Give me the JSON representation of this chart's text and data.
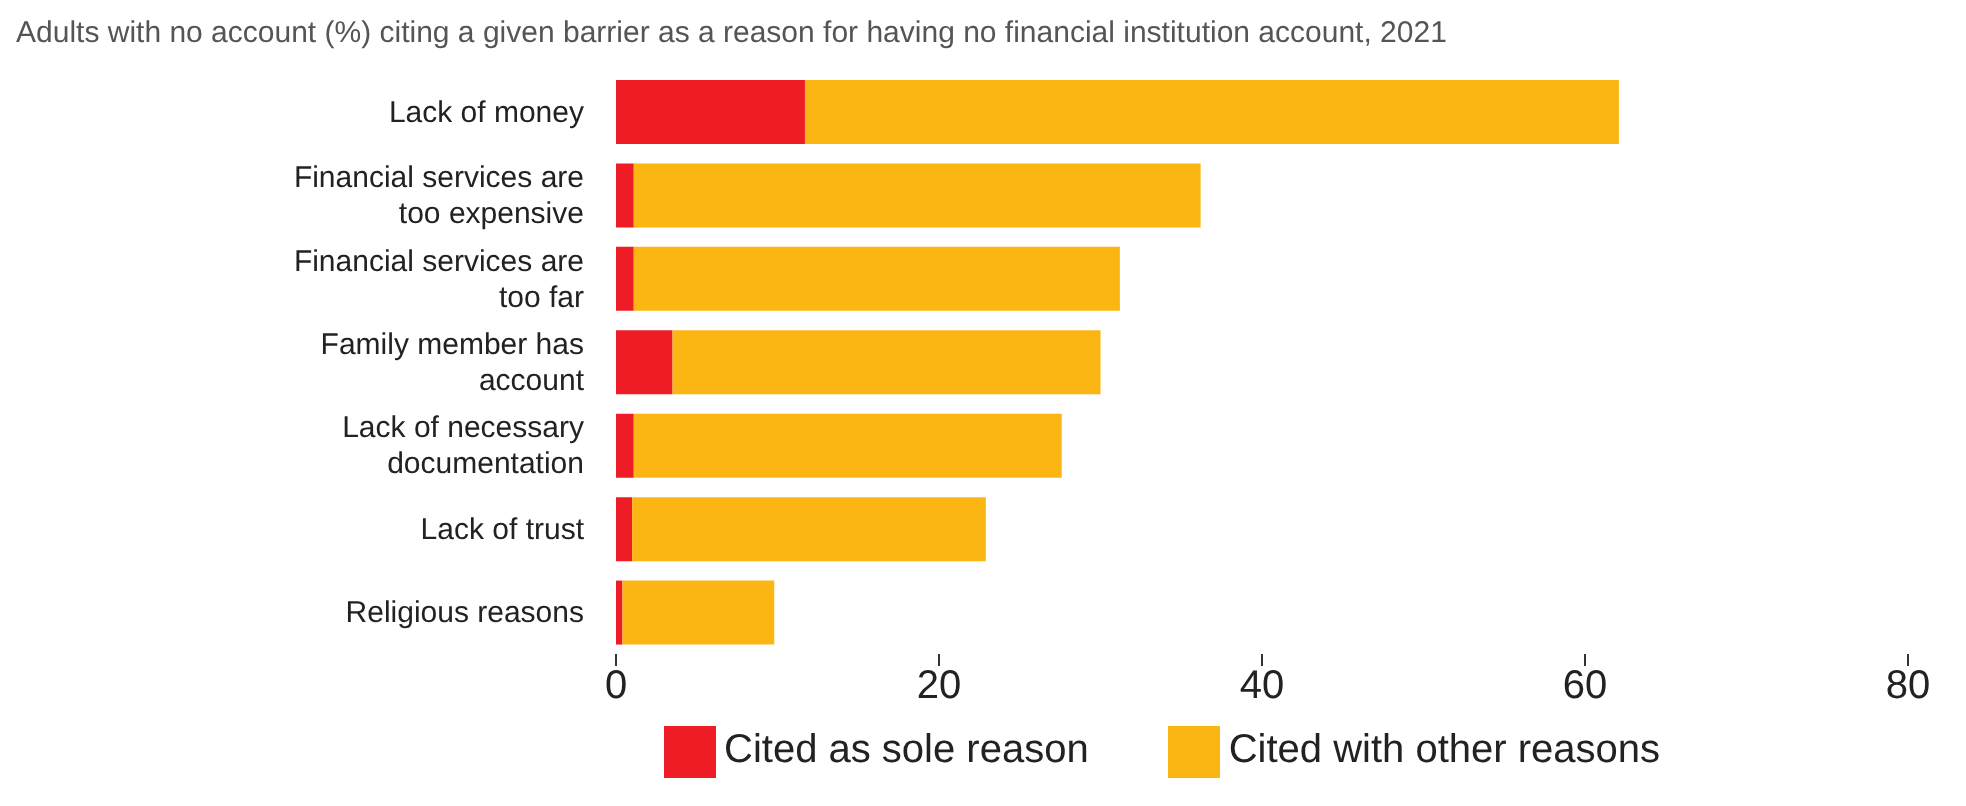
{
  "chart_data": {
    "type": "bar",
    "orientation": "horizontal",
    "stacked": true,
    "title": "Adults with no account (%) citing a given barrier as a reason for having no financial institution account, 2021",
    "categories": [
      "Lack of money",
      "Financial services are too expensive",
      "Financial services are too far",
      "Family member has account",
      "Lack of necessary documentation",
      "Lack of trust",
      "Religious reasons"
    ],
    "series": [
      {
        "name": "Cited as sole reason",
        "color": "#ee1c25",
        "values": [
          11.7,
          1.1,
          1.1,
          3.5,
          1.1,
          1.0,
          0.4
        ]
      },
      {
        "name": "Cited with other reasons",
        "color": "#fbb614",
        "values": [
          50.4,
          35.1,
          30.1,
          26.5,
          26.5,
          21.9,
          9.4
        ]
      }
    ],
    "xlim": [
      0,
      80
    ],
    "xticks": [
      0,
      20,
      40,
      60,
      80
    ],
    "grid": false,
    "legend": "bottom"
  }
}
